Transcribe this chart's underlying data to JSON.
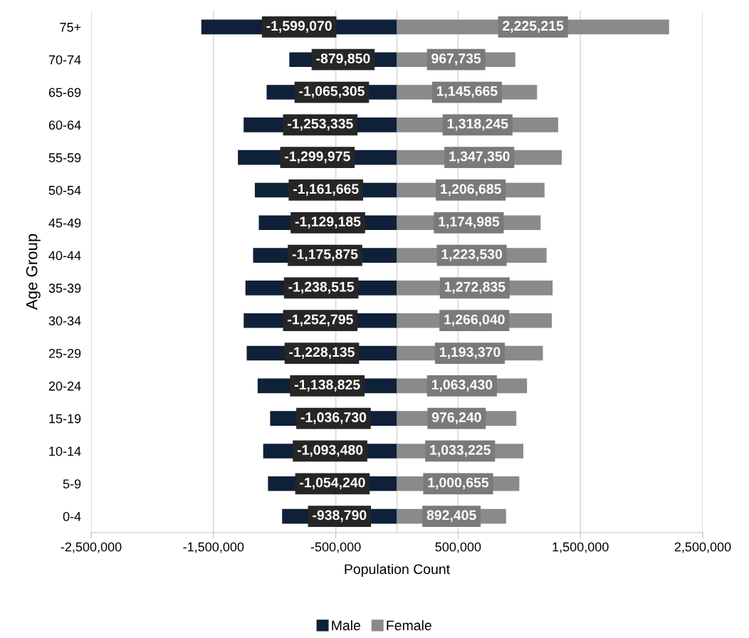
{
  "chart_data": {
    "type": "bar",
    "orientation": "horizontal",
    "xlabel": "Population Count",
    "ylabel": "Age Group",
    "categories": [
      "75+",
      "70-74",
      "65-69",
      "60-64",
      "55-59",
      "50-54",
      "45-49",
      "40-44",
      "35-39",
      "30-34",
      "25-29",
      "20-24",
      "15-19",
      "10-14",
      "5-9",
      "0-4"
    ],
    "series": [
      {
        "name": "Male",
        "color": "#0e2138",
        "values": [
          -1599070,
          -879850,
          -1065305,
          -1253335,
          -1299975,
          -1161665,
          -1129185,
          -1175875,
          -1238515,
          -1252795,
          -1228135,
          -1138825,
          -1036730,
          -1093480,
          -1054240,
          -938790
        ],
        "value_labels": [
          "-1,599,070",
          "-879,850",
          "-1,065,305",
          "-1,253,335",
          "-1,299,975",
          "-1,161,665",
          "-1,129,185",
          "-1,175,875",
          "-1,238,515",
          "-1,252,795",
          "-1,228,135",
          "-1,138,825",
          "-1,036,730",
          "-1,093,480",
          "-1,054,240",
          "-938,790"
        ]
      },
      {
        "name": "Female",
        "color": "#8a8a8c",
        "values": [
          2225215,
          967735,
          1145665,
          1318245,
          1347350,
          1206685,
          1174985,
          1223530,
          1272835,
          1266040,
          1193370,
          1063430,
          976240,
          1033225,
          1000655,
          892405
        ],
        "value_labels": [
          "2,225,215",
          "967,735",
          "1,145,665",
          "1,318,245",
          "1,347,350",
          "1,206,685",
          "1,174,985",
          "1,223,530",
          "1,272,835",
          "1,266,040",
          "1,193,370",
          "1,063,430",
          "976,240",
          "1,033,225",
          "1,000,655",
          "892,405"
        ]
      }
    ],
    "xlim": [
      -2500000,
      2500000
    ],
    "xticks": [
      {
        "value": -2500000,
        "label": "-2,500,000"
      },
      {
        "value": -1500000,
        "label": "-1,500,000"
      },
      {
        "value": -500000,
        "label": "-500,000"
      },
      {
        "value": 500000,
        "label": "500,000"
      },
      {
        "value": 1500000,
        "label": "1,500,000"
      },
      {
        "value": 2500000,
        "label": "2,500,000"
      }
    ],
    "stacked": true,
    "grid": "x",
    "legend": "bottom"
  }
}
